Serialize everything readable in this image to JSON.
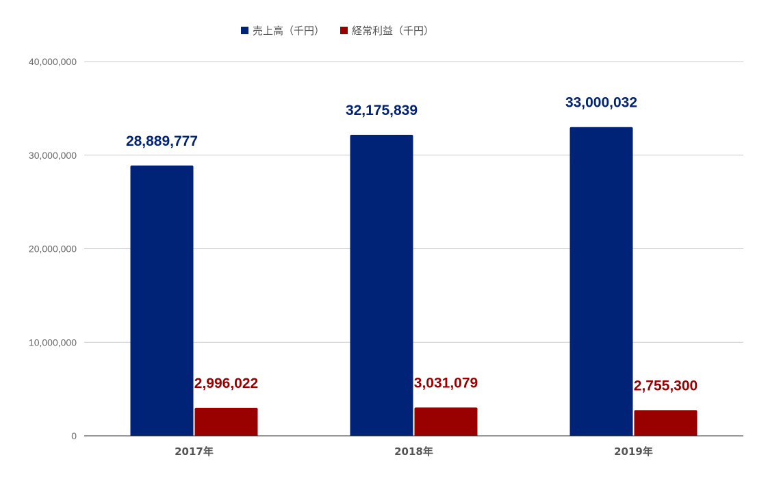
{
  "chart_data": {
    "type": "bar",
    "title": "",
    "xlabel": "",
    "ylabel": "",
    "categories": [
      "2017年",
      "2018年",
      "2019年"
    ],
    "series": [
      {
        "name": "売上高（千円）",
        "color": "#002277",
        "values": [
          28889777,
          32175839,
          33000032
        ],
        "labels": [
          "28,889,777",
          "32,175,839",
          "33,000,032"
        ]
      },
      {
        "name": "経常利益（千円）",
        "color": "#990000",
        "values": [
          2996022,
          3031079,
          2755300
        ],
        "labels": [
          "2,996,022",
          "3,031,079",
          "2,755,300"
        ]
      }
    ],
    "ylim": [
      0,
      40000000
    ],
    "yticks": [
      0,
      10000000,
      20000000,
      30000000,
      40000000
    ],
    "ytick_labels": [
      "0",
      "10,000,000",
      "20,000,000",
      "30,000,000",
      "40,000,000"
    ],
    "grid": true,
    "legend_position": "top"
  }
}
